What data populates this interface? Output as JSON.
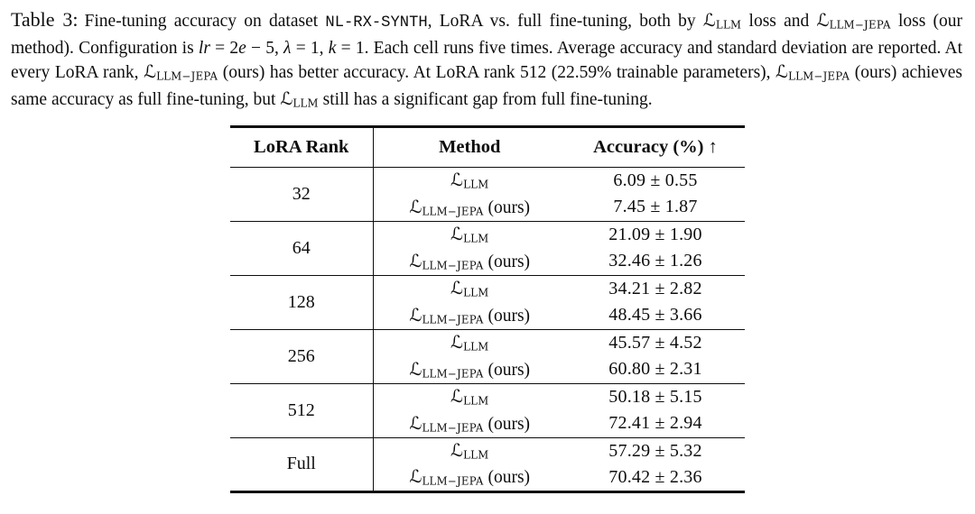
{
  "colors": {
    "text": "#0d0d0d",
    "rule": "#0d0d0d",
    "background": "#ffffff"
  },
  "math": {
    "cal_symbol": "ℒ"
  },
  "caption": {
    "label": "Table 3:",
    "segments": [
      {
        "k": "t",
        "v": "Fine-tuning accuracy on dataset "
      },
      {
        "k": "m",
        "v": "NL-RX-SYNTH"
      },
      {
        "k": "t",
        "v": ", LoRA vs. full fine-tuning, both by "
      },
      {
        "k": "L",
        "v": "LLM"
      },
      {
        "k": "t",
        "v": " loss and "
      },
      {
        "k": "L",
        "v": "LLM−JEPA"
      },
      {
        "k": "t",
        "v": " loss (our method). Configuration is "
      },
      {
        "k": "i",
        "v": "lr"
      },
      {
        "k": "t",
        "v": " = 2"
      },
      {
        "k": "i",
        "v": "e"
      },
      {
        "k": "t",
        "v": " − 5, "
      },
      {
        "k": "i",
        "v": "λ"
      },
      {
        "k": "t",
        "v": " = 1, "
      },
      {
        "k": "i",
        "v": "k"
      },
      {
        "k": "t",
        "v": " = 1. Each cell runs five times. Average accuracy and standard deviation are reported. At every LoRA rank, "
      },
      {
        "k": "L",
        "v": "LLM−JEPA"
      },
      {
        "k": "t",
        "v": " (ours) has better accuracy. At LoRA rank 512 (22.59% trainable parameters), "
      },
      {
        "k": "L",
        "v": "LLM−JEPA"
      },
      {
        "k": "t",
        "v": " (ours) achieves same accuracy as full fine-tuning, but "
      },
      {
        "k": "L",
        "v": "LLM"
      },
      {
        "k": "t",
        "v": " still has a significant gap from full fine-tuning."
      }
    ]
  },
  "table": {
    "headers": [
      "LoRA Rank",
      "Method",
      "Accuracy (%) ↑"
    ],
    "rows": [
      {
        "rank": "32",
        "entries": [
          {
            "sub": "LLM",
            "suffix": "",
            "accuracy": "6.09 ± 0.55"
          },
          {
            "sub": "LLM−JEPA",
            "suffix": " (ours)",
            "accuracy": "7.45 ± 1.87"
          }
        ]
      },
      {
        "rank": "64",
        "entries": [
          {
            "sub": "LLM",
            "suffix": "",
            "accuracy": "21.09 ± 1.90"
          },
          {
            "sub": "LLM−JEPA",
            "suffix": " (ours)",
            "accuracy": "32.46 ± 1.26"
          }
        ]
      },
      {
        "rank": "128",
        "entries": [
          {
            "sub": "LLM",
            "suffix": "",
            "accuracy": "34.21 ± 2.82"
          },
          {
            "sub": "LLM−JEPA",
            "suffix": " (ours)",
            "accuracy": "48.45 ± 3.66"
          }
        ]
      },
      {
        "rank": "256",
        "entries": [
          {
            "sub": "LLM",
            "suffix": "",
            "accuracy": "45.57 ± 4.52"
          },
          {
            "sub": "LLM−JEPA",
            "suffix": " (ours)",
            "accuracy": "60.80 ± 2.31"
          }
        ]
      },
      {
        "rank": "512",
        "entries": [
          {
            "sub": "LLM",
            "suffix": "",
            "accuracy": "50.18 ± 5.15"
          },
          {
            "sub": "LLM−JEPA",
            "suffix": " (ours)",
            "accuracy": "72.41 ± 2.94"
          }
        ]
      },
      {
        "rank": "Full",
        "entries": [
          {
            "sub": "LLM",
            "suffix": "",
            "accuracy": "57.29 ± 5.32"
          },
          {
            "sub": "LLM−JEPA",
            "suffix": " (ours)",
            "accuracy": "70.42 ± 2.36"
          }
        ]
      }
    ]
  }
}
